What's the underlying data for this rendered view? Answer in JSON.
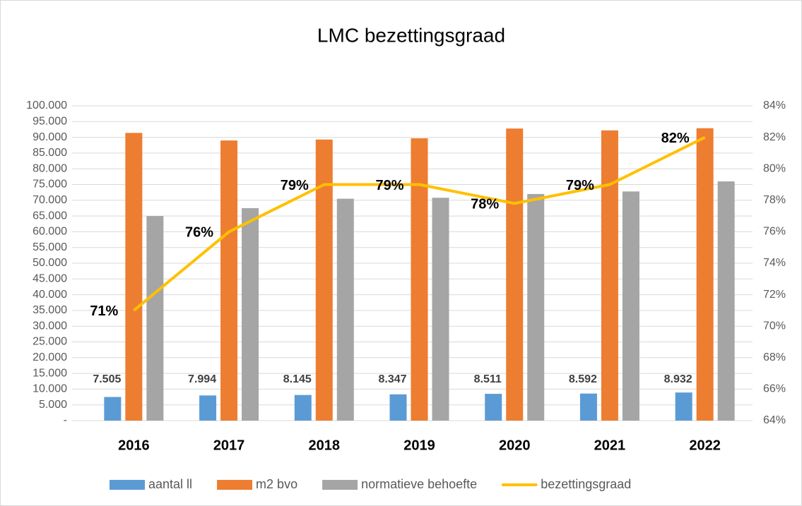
{
  "chart_data": {
    "type": "bar",
    "title": "LMC bezettingsgraad",
    "categories": [
      "2016",
      "2017",
      "2018",
      "2019",
      "2020",
      "2021",
      "2022"
    ],
    "series": [
      {
        "name": "aantal ll",
        "type": "bar",
        "color": "#5b9bd5",
        "values": [
          7505,
          7994,
          8145,
          8347,
          8511,
          8592,
          8932
        ],
        "value_labels": [
          "7.505",
          "7.994",
          "8.145",
          "8.347",
          "8.511",
          "8.592",
          "8.932"
        ]
      },
      {
        "name": "m2 bvo",
        "type": "bar",
        "color": "#ed7d31",
        "values": [
          91400,
          89000,
          89300,
          89700,
          92800,
          92200,
          92900
        ]
      },
      {
        "name": "normatieve behoefte",
        "type": "bar",
        "color": "#a5a5a5",
        "values": [
          65000,
          67500,
          70500,
          70800,
          72000,
          72800,
          76000
        ]
      },
      {
        "name": "bezettingsgraad",
        "type": "line",
        "axis": "y2",
        "color": "#ffc000",
        "values": [
          71,
          76,
          79,
          79,
          77.8,
          79,
          82
        ],
        "value_labels": [
          "71%",
          "76%",
          "79%",
          "79%",
          "78%",
          "79%",
          "82%"
        ]
      }
    ],
    "ylim": [
      0,
      100000
    ],
    "yticks": [
      {
        "value": 0,
        "label": "-"
      },
      {
        "value": 5000,
        "label": "5.000"
      },
      {
        "value": 10000,
        "label": "10.000"
      },
      {
        "value": 15000,
        "label": "15.000"
      },
      {
        "value": 20000,
        "label": "20.000"
      },
      {
        "value": 25000,
        "label": "25.000"
      },
      {
        "value": 30000,
        "label": "30.000"
      },
      {
        "value": 35000,
        "label": "35.000"
      },
      {
        "value": 40000,
        "label": "40.000"
      },
      {
        "value": 45000,
        "label": "45.000"
      },
      {
        "value": 50000,
        "label": "50.000"
      },
      {
        "value": 55000,
        "label": "55.000"
      },
      {
        "value": 60000,
        "label": "60.000"
      },
      {
        "value": 65000,
        "label": "65.000"
      },
      {
        "value": 70000,
        "label": "70.000"
      },
      {
        "value": 75000,
        "label": "75.000"
      },
      {
        "value": 80000,
        "label": "80.000"
      },
      {
        "value": 85000,
        "label": "85.000"
      },
      {
        "value": 90000,
        "label": "90.000"
      },
      {
        "value": 95000,
        "label": "95.000"
      },
      {
        "value": 100000,
        "label": "100.000"
      }
    ],
    "y2lim": [
      64,
      84
    ],
    "y2ticks": [
      {
        "value": 64,
        "label": "64%"
      },
      {
        "value": 66,
        "label": "66%"
      },
      {
        "value": 68,
        "label": "68%"
      },
      {
        "value": 70,
        "label": "70%"
      },
      {
        "value": 72,
        "label": "72%"
      },
      {
        "value": 74,
        "label": "74%"
      },
      {
        "value": 76,
        "label": "76%"
      },
      {
        "value": 78,
        "label": "78%"
      },
      {
        "value": 80,
        "label": "80%"
      },
      {
        "value": 82,
        "label": "82%"
      },
      {
        "value": 84,
        "label": "84%"
      }
    ],
    "grid": true,
    "legend": "bottom"
  }
}
